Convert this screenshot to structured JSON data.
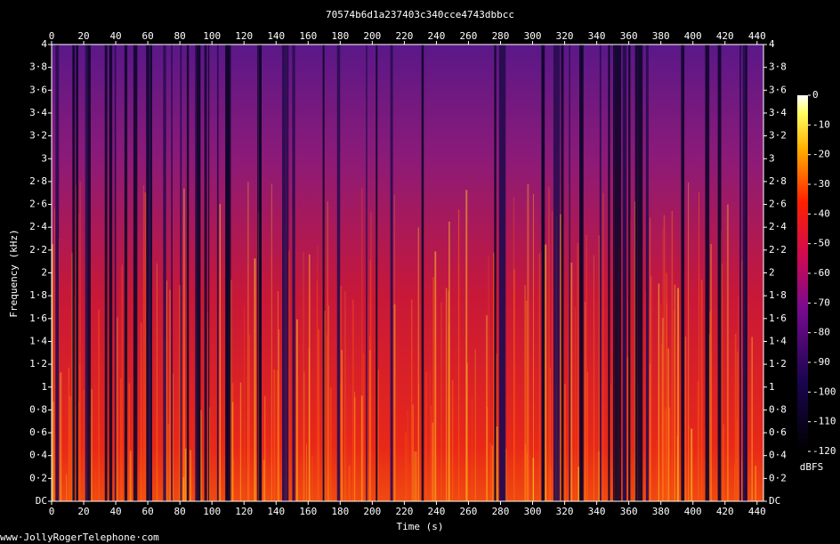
{
  "chart_data": {
    "type": "spectrogram",
    "title": "70574b6d1a237403c340cce4743dbbcc",
    "xlabel": "Time (s)",
    "ylabel": "Frequency (kHz)",
    "xlim": [
      0,
      444
    ],
    "xticks": [
      0,
      20,
      40,
      60,
      80,
      100,
      120,
      140,
      160,
      180,
      200,
      220,
      240,
      260,
      280,
      300,
      320,
      340,
      360,
      380,
      400,
      420,
      440
    ],
    "ylim": [
      0,
      4
    ],
    "yticks": [
      {
        "value": 0,
        "label": "DC"
      },
      {
        "value": 0.2,
        "label": "0·2"
      },
      {
        "value": 0.4,
        "label": "0·4"
      },
      {
        "value": 0.6,
        "label": "0·6"
      },
      {
        "value": 0.8,
        "label": "0·8"
      },
      1,
      {
        "value": 1.2,
        "label": "1·2"
      },
      {
        "value": 1.4,
        "label": "1·4"
      },
      {
        "value": 1.6,
        "label": "1·6"
      },
      {
        "value": 1.8,
        "label": "1·8"
      },
      2,
      {
        "value": 2.2,
        "label": "2·2"
      },
      {
        "value": 2.4,
        "label": "2·4"
      },
      {
        "value": 2.6,
        "label": "2·6"
      },
      {
        "value": 2.8,
        "label": "2·8"
      },
      3,
      {
        "value": 3.2,
        "label": "3·2"
      },
      {
        "value": 3.4,
        "label": "3·4"
      },
      {
        "value": 3.6,
        "label": "3·6"
      },
      {
        "value": 3.8,
        "label": "3·8"
      },
      4
    ],
    "colorbar": {
      "label": "dBFS",
      "lim": [
        -120,
        0
      ],
      "ticks": [
        0,
        -10,
        -20,
        -30,
        -40,
        -50,
        -60,
        -70,
        -80,
        -90,
        -100,
        -110,
        -120
      ]
    },
    "footer": "www·JollyRogerTelephone·com"
  }
}
